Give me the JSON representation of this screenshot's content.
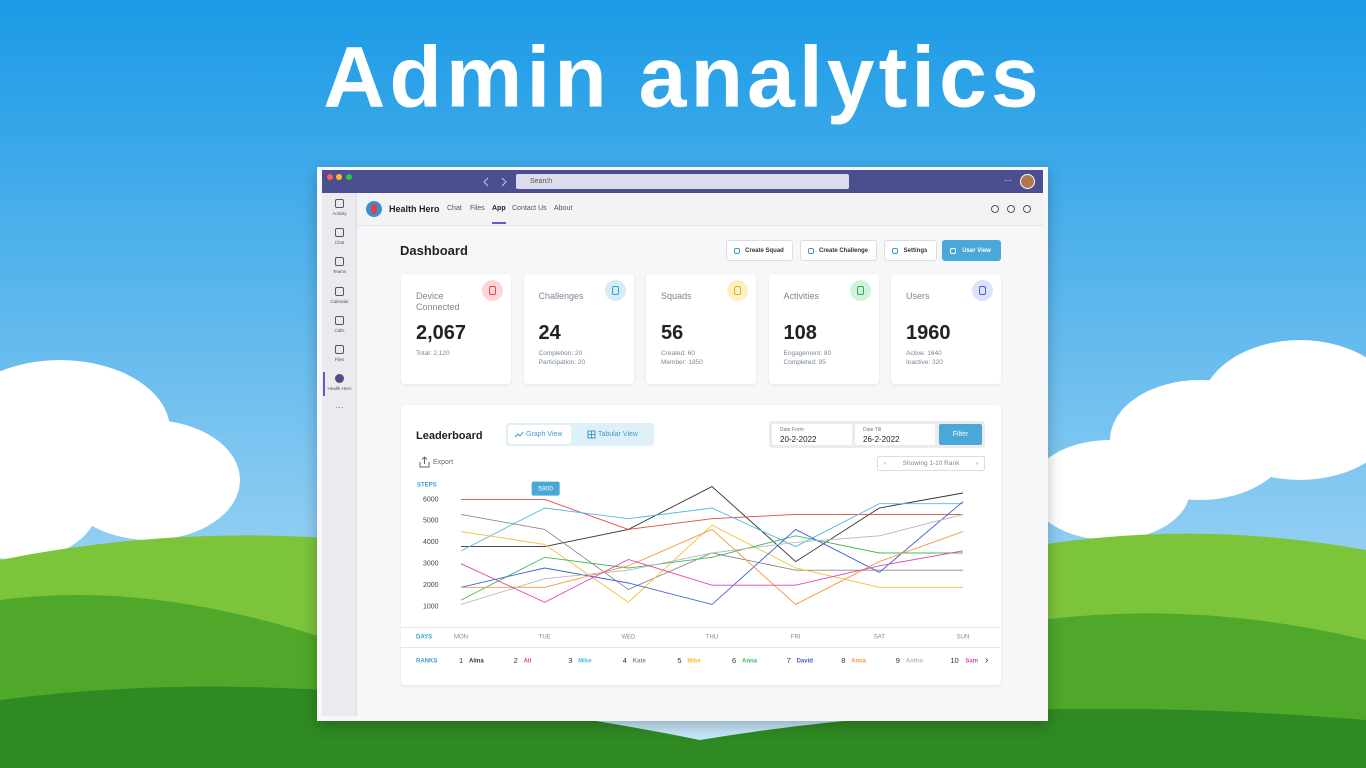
{
  "hero_title": "Admin analytics",
  "window": {
    "search": "Search"
  },
  "sidebar": [
    "Activity",
    "Chat",
    "Teams",
    "Calendar",
    "Calls",
    "Files",
    "Health Hero"
  ],
  "app": {
    "name": "Health Hero",
    "tabs": [
      "Chat",
      "Files",
      "App",
      "Contact Us",
      "About"
    ]
  },
  "dashboard": {
    "title": "Dashboard",
    "buttons": [
      "Create Squad",
      "Create Challenge",
      "Settings",
      "User View"
    ],
    "cards": [
      {
        "label": "Device Connected",
        "value": "2,067",
        "details": [
          "Total: 2,120"
        ]
      },
      {
        "label": "Challenges",
        "value": "24",
        "details": [
          "Completion: 20",
          "Participation: 20"
        ]
      },
      {
        "label": "Squads",
        "value": "56",
        "details": [
          "Created: 60",
          "Member: 1850"
        ]
      },
      {
        "label": "Activities",
        "value": "108",
        "details": [
          "Engagement: 80",
          "Completed: 95"
        ]
      },
      {
        "label": "Users",
        "value": "1960",
        "details": [
          "Active: 1640",
          "Inactive: 320"
        ]
      }
    ]
  },
  "leaderboard": {
    "title": "Leaderboard",
    "views": [
      "Graph View",
      "Tabular View"
    ],
    "date_from_label": "Date From",
    "date_from": "20-2-2022",
    "date_till_label": "Date Till",
    "date_till": "26-2-2022",
    "filter": "Filter",
    "export": "Export",
    "paging": "Showing 1-10 Rank"
  },
  "chart_data": {
    "type": "line",
    "y_label": "STEPS",
    "x_label": "DAYS",
    "ranks_label": "RANKS",
    "categories": [
      "MON",
      "TUE",
      "WED",
      "THU",
      "FRI",
      "SAT",
      "SUN"
    ],
    "ylim": [
      0,
      7000
    ],
    "yticks": [
      1000,
      2000,
      3000,
      4000,
      5000,
      6000
    ],
    "grid": false,
    "tooltip": 5900,
    "series": [
      {
        "rank": 1,
        "name": "Aiina",
        "color": "#333333",
        "values": [
          3800,
          3800,
          4600,
          6600,
          3100,
          5600,
          6300
        ]
      },
      {
        "rank": 2,
        "name": "Ali",
        "color": "#e04848",
        "values": [
          6000,
          6000,
          4600,
          5100,
          5300,
          5300,
          5300
        ]
      },
      {
        "rank": 3,
        "name": "Mike",
        "color": "#56b8e0",
        "values": [
          3600,
          5600,
          5100,
          5600,
          3800,
          5800,
          5800
        ]
      },
      {
        "rank": 4,
        "name": "Kate",
        "color": "#8a8a8a",
        "values": [
          5300,
          4600,
          1800,
          3500,
          2700,
          2700,
          2700
        ]
      },
      {
        "rank": 5,
        "name": "Mike",
        "color": "#f2c230",
        "values": [
          4500,
          3900,
          1200,
          4800,
          2800,
          1900,
          1900
        ]
      },
      {
        "rank": 6,
        "name": "Anna",
        "color": "#3dbb5e",
        "values": [
          1300,
          3300,
          2800,
          3300,
          4300,
          3500,
          3500
        ]
      },
      {
        "rank": 7,
        "name": "David",
        "color": "#3f62d8",
        "values": [
          1900,
          2800,
          2100,
          1100,
          4600,
          2600,
          5900
        ]
      },
      {
        "rank": 8,
        "name": "Anna",
        "color": "#f39a3c",
        "values": [
          1900,
          1900,
          2900,
          4600,
          1100,
          3100,
          4500
        ]
      },
      {
        "rank": 9,
        "name": "Antho",
        "color": "#b8b8b8",
        "values": [
          1100,
          2300,
          2700,
          3500,
          4000,
          4300,
          5300
        ]
      },
      {
        "rank": 10,
        "name": "Sam",
        "color": "#e048b0",
        "values": [
          3000,
          1200,
          3200,
          2000,
          2000,
          2900,
          3600
        ]
      }
    ]
  }
}
